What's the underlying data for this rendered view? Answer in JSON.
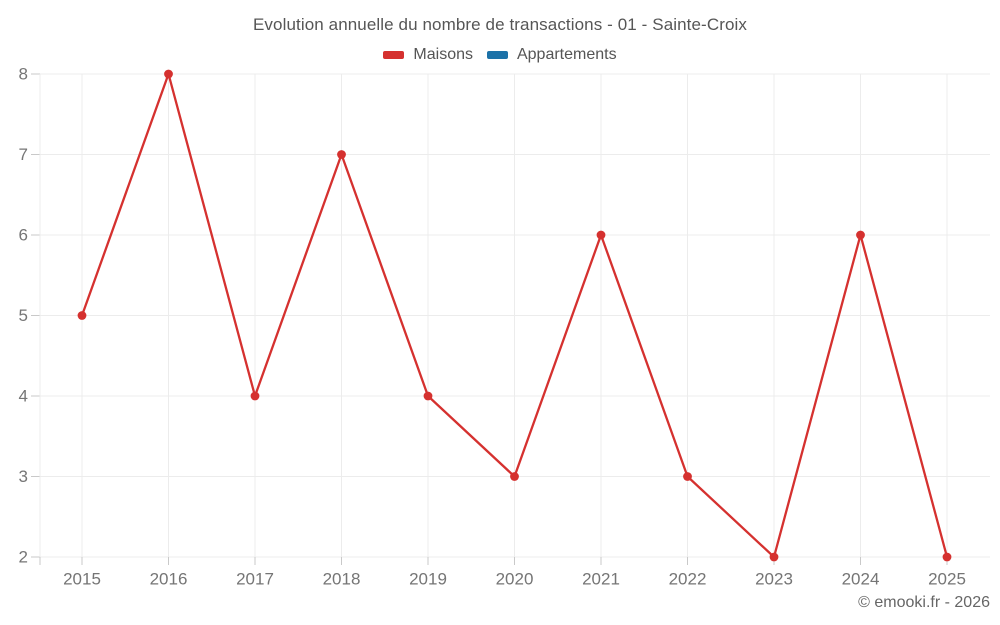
{
  "footer": {
    "copyright": "© emooki.fr - 2026"
  },
  "colors": {
    "background": "#ffffff",
    "grid": "#ececec",
    "axis_tick": "#c9c9c9",
    "tick_label": "#757575",
    "title_text": "#565656",
    "legend_text": "#555555",
    "copyright_text": "#666666"
  },
  "chart_data": {
    "type": "line",
    "title": "Evolution annuelle du nombre de transactions - 01 - Sainte-Croix",
    "categories": [
      "2015",
      "2016",
      "2017",
      "2018",
      "2019",
      "2020",
      "2021",
      "2022",
      "2023",
      "2024",
      "2025"
    ],
    "series": [
      {
        "name": "Maisons",
        "color": "#d5312f",
        "values": [
          5,
          8,
          4,
          7,
          4,
          3,
          6,
          3,
          2,
          6,
          2
        ]
      },
      {
        "name": "Appartements",
        "color": "#1c72a8",
        "values": []
      }
    ],
    "xlabel": "",
    "ylabel": "",
    "ylim": [
      2,
      8
    ],
    "yticks": [
      2,
      3,
      4,
      5,
      6,
      7,
      8
    ],
    "grid": true,
    "legend_position": "top"
  }
}
